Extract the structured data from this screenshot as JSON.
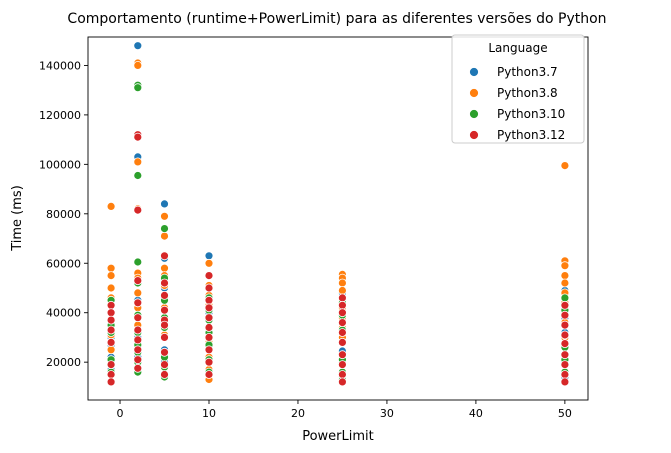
{
  "chart_data": {
    "type": "scatter",
    "title": "Comportamento (runtime+PowerLimit) para as diferentes versões do Python",
    "xlabel": "PowerLimit",
    "ylabel": "Time (ms)",
    "xlim": [
      -3.6,
      52.6
    ],
    "ylim": [
      4700,
      151500
    ],
    "xticks": [
      0,
      10,
      20,
      30,
      40,
      50
    ],
    "yticks": [
      20000,
      40000,
      60000,
      80000,
      100000,
      120000,
      140000
    ],
    "grid": false,
    "legend": {
      "title": "Language",
      "placement": "top-right"
    },
    "series": [
      {
        "name": "Python3.7",
        "color": "#1f77b4",
        "points": [
          [
            -1,
            12000
          ],
          [
            -1,
            17000
          ],
          [
            -1,
            22000
          ],
          [
            -1,
            27000
          ],
          [
            -1,
            30000
          ],
          [
            -1,
            35000
          ],
          [
            -1,
            40000
          ],
          [
            -1,
            45000
          ],
          [
            2,
            148000
          ],
          [
            2,
            103000
          ],
          [
            2,
            55000
          ],
          [
            2,
            45000
          ],
          [
            2,
            38000
          ],
          [
            2,
            30000
          ],
          [
            2,
            22000
          ],
          [
            2,
            17000
          ],
          [
            5,
            84000
          ],
          [
            5,
            62000
          ],
          [
            5,
            58000
          ],
          [
            5,
            50000
          ],
          [
            5,
            45000
          ],
          [
            5,
            36000
          ],
          [
            5,
            25000
          ],
          [
            5,
            20000
          ],
          [
            5,
            15000
          ],
          [
            10,
            63000
          ],
          [
            10,
            55000
          ],
          [
            10,
            47000
          ],
          [
            10,
            40000
          ],
          [
            10,
            33000
          ],
          [
            10,
            26000
          ],
          [
            10,
            20000
          ],
          [
            10,
            15000
          ],
          [
            25,
            48000
          ],
          [
            25,
            42000
          ],
          [
            25,
            36000
          ],
          [
            25,
            30000
          ],
          [
            25,
            24500
          ],
          [
            25,
            20000
          ],
          [
            25,
            14000
          ],
          [
            50,
            49000
          ],
          [
            50,
            44000
          ],
          [
            50,
            38000
          ],
          [
            50,
            32000
          ],
          [
            50,
            26000
          ],
          [
            50,
            20000
          ],
          [
            50,
            14000
          ]
        ]
      },
      {
        "name": "Python3.8",
        "color": "#ff7f0e",
        "points": [
          [
            -1,
            83000
          ],
          [
            -1,
            58000
          ],
          [
            -1,
            55000
          ],
          [
            -1,
            50000
          ],
          [
            -1,
            46000
          ],
          [
            -1,
            43000
          ],
          [
            -1,
            37000
          ],
          [
            -1,
            31000
          ],
          [
            -1,
            25000
          ],
          [
            2,
            141000
          ],
          [
            2,
            140000
          ],
          [
            2,
            101000
          ],
          [
            2,
            82000
          ],
          [
            2,
            56000
          ],
          [
            2,
            54000
          ],
          [
            2,
            48000
          ],
          [
            2,
            42000
          ],
          [
            2,
            35000
          ],
          [
            2,
            28000
          ],
          [
            5,
            79000
          ],
          [
            5,
            71000
          ],
          [
            5,
            58000
          ],
          [
            5,
            55000
          ],
          [
            5,
            51000
          ],
          [
            5,
            47000
          ],
          [
            5,
            42000
          ],
          [
            5,
            37000
          ],
          [
            5,
            31000
          ],
          [
            5,
            24000
          ],
          [
            5,
            18000
          ],
          [
            10,
            60000
          ],
          [
            10,
            55000
          ],
          [
            10,
            51000
          ],
          [
            10,
            47000
          ],
          [
            10,
            43000
          ],
          [
            10,
            38000
          ],
          [
            10,
            33000
          ],
          [
            10,
            28000
          ],
          [
            10,
            22000
          ],
          [
            10,
            17000
          ],
          [
            10,
            13000
          ],
          [
            25,
            55500
          ],
          [
            25,
            54000
          ],
          [
            25,
            52000
          ],
          [
            25,
            49000
          ],
          [
            25,
            46000
          ],
          [
            25,
            42000
          ],
          [
            25,
            38000
          ],
          [
            25,
            34000
          ],
          [
            25,
            30000
          ],
          [
            50,
            99500
          ],
          [
            50,
            61000
          ],
          [
            50,
            59000
          ],
          [
            50,
            55000
          ],
          [
            50,
            52000
          ],
          [
            50,
            48000
          ],
          [
            50,
            44000
          ],
          [
            50,
            40000
          ],
          [
            50,
            36000
          ],
          [
            50,
            30000
          ]
        ]
      },
      {
        "name": "Python3.10",
        "color": "#2ca02c",
        "points": [
          [
            -1,
            45000
          ],
          [
            -1,
            40000
          ],
          [
            -1,
            35000
          ],
          [
            -1,
            32000
          ],
          [
            -1,
            28000
          ],
          [
            -1,
            21000
          ],
          [
            -1,
            16000
          ],
          [
            2,
            132000
          ],
          [
            2,
            131000
          ],
          [
            2,
            95500
          ],
          [
            2,
            60500
          ],
          [
            2,
            52000
          ],
          [
            2,
            44000
          ],
          [
            2,
            39000
          ],
          [
            2,
            32000
          ],
          [
            2,
            27000
          ],
          [
            2,
            24000
          ],
          [
            2,
            20000
          ],
          [
            2,
            16000
          ],
          [
            5,
            74000
          ],
          [
            5,
            54000
          ],
          [
            5,
            45000
          ],
          [
            5,
            38000
          ],
          [
            5,
            34000
          ],
          [
            5,
            30000
          ],
          [
            5,
            22000
          ],
          [
            5,
            18000
          ],
          [
            5,
            14000
          ],
          [
            10,
            46000
          ],
          [
            10,
            41000
          ],
          [
            10,
            37000
          ],
          [
            10,
            32000
          ],
          [
            10,
            27000
          ],
          [
            10,
            21000
          ],
          [
            10,
            16000
          ],
          [
            25,
            44000
          ],
          [
            25,
            39000
          ],
          [
            25,
            33000
          ],
          [
            25,
            28000
          ],
          [
            25,
            21000
          ],
          [
            25,
            16000
          ],
          [
            25,
            13000
          ],
          [
            50,
            46000
          ],
          [
            50,
            41000
          ],
          [
            50,
            35000
          ],
          [
            50,
            31000
          ],
          [
            50,
            26000
          ],
          [
            50,
            21000
          ],
          [
            50,
            16000
          ]
        ]
      },
      {
        "name": "Python3.12",
        "color": "#d62728",
        "points": [
          [
            -1,
            43000
          ],
          [
            -1,
            40000
          ],
          [
            -1,
            37000
          ],
          [
            -1,
            33000
          ],
          [
            -1,
            28000
          ],
          [
            -1,
            19000
          ],
          [
            -1,
            15000
          ],
          [
            -1,
            12000
          ],
          [
            2,
            112000
          ],
          [
            2,
            111000
          ],
          [
            2,
            81500
          ],
          [
            2,
            53000
          ],
          [
            2,
            44000
          ],
          [
            2,
            38000
          ],
          [
            2,
            33000
          ],
          [
            2,
            29000
          ],
          [
            2,
            25000
          ],
          [
            2,
            21000
          ],
          [
            2,
            17500
          ],
          [
            5,
            63000
          ],
          [
            5,
            52000
          ],
          [
            5,
            47000
          ],
          [
            5,
            41000
          ],
          [
            5,
            37000
          ],
          [
            5,
            35000
          ],
          [
            5,
            30000
          ],
          [
            5,
            24000
          ],
          [
            5,
            19000
          ],
          [
            5,
            15000
          ],
          [
            10,
            55000
          ],
          [
            10,
            50000
          ],
          [
            10,
            45000
          ],
          [
            10,
            42000
          ],
          [
            10,
            38000
          ],
          [
            10,
            34000
          ],
          [
            10,
            30000
          ],
          [
            10,
            25000
          ],
          [
            10,
            20000
          ],
          [
            10,
            15000
          ],
          [
            25,
            46000
          ],
          [
            25,
            43000
          ],
          [
            25,
            40000
          ],
          [
            25,
            36000
          ],
          [
            25,
            32000
          ],
          [
            25,
            28000
          ],
          [
            25,
            23000
          ],
          [
            25,
            19000
          ],
          [
            25,
            15000
          ],
          [
            25,
            12000
          ],
          [
            50,
            43000
          ],
          [
            50,
            39000
          ],
          [
            50,
            35000
          ],
          [
            50,
            31000
          ],
          [
            50,
            27500
          ],
          [
            50,
            23000
          ],
          [
            50,
            19000
          ],
          [
            50,
            15000
          ],
          [
            50,
            12000
          ]
        ]
      }
    ]
  }
}
